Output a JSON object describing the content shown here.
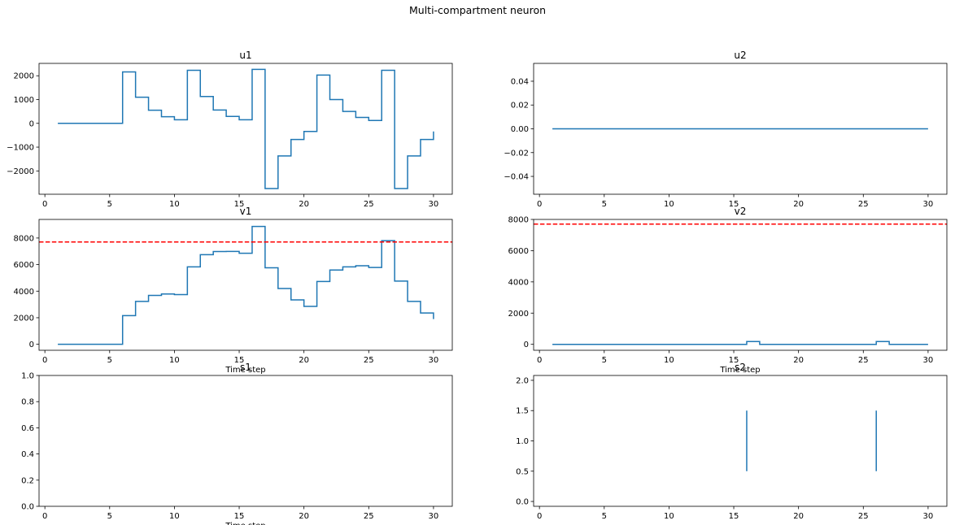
{
  "suptitle": "Multi-compartment neuron",
  "colors": {
    "series": "#1f77b4",
    "threshold": "#ff0000"
  },
  "chart_data": [
    {
      "id": "u1",
      "type": "line",
      "step": true,
      "title": "u1",
      "xlabel": "",
      "xlim": [
        -0.45,
        31.45
      ],
      "ylim": [
        -2980,
        2520
      ],
      "xticks": [
        0,
        5,
        10,
        15,
        20,
        25,
        30
      ],
      "yticks": [
        -2000,
        -1000,
        0,
        1000,
        2000
      ],
      "yticklabels": [
        "−2000",
        "−1000",
        "0",
        "1000",
        "2000"
      ],
      "x": [
        1,
        2,
        3,
        4,
        5,
        6,
        7,
        8,
        9,
        10,
        11,
        12,
        13,
        14,
        15,
        16,
        17,
        18,
        19,
        20,
        21,
        22,
        23,
        24,
        25,
        26,
        27,
        28,
        29,
        30
      ],
      "y": [
        0,
        0,
        0,
        0,
        0,
        2160,
        1100,
        550,
        280,
        150,
        2230,
        1130,
        560,
        290,
        150,
        2270,
        -2740,
        -1370,
        -680,
        -340,
        2030,
        1000,
        500,
        250,
        120,
        2230,
        -2740,
        -1370,
        -680,
        -340
      ]
    },
    {
      "id": "u2",
      "type": "line",
      "step": true,
      "title": "u2",
      "xlabel": "",
      "xlim": [
        -0.45,
        31.45
      ],
      "ylim": [
        -0.055,
        0.055
      ],
      "xticks": [
        0,
        5,
        10,
        15,
        20,
        25,
        30
      ],
      "yticks": [
        -0.04,
        -0.02,
        0.0,
        0.02,
        0.04
      ],
      "yticklabels": [
        "−0.04",
        "−0.02",
        "0.00",
        "0.02",
        "0.04"
      ],
      "x": [
        1,
        30
      ],
      "y": [
        0,
        0
      ]
    },
    {
      "id": "v1",
      "type": "line",
      "step": true,
      "title": "v1",
      "xlabel": "Time step",
      "xlim": [
        -0.45,
        31.45
      ],
      "ylim": [
        -450,
        9400
      ],
      "xticks": [
        0,
        5,
        10,
        15,
        20,
        25,
        30
      ],
      "yticks": [
        0,
        2000,
        4000,
        6000,
        8000
      ],
      "yticklabels": [
        "0",
        "2000",
        "4000",
        "6000",
        "8000"
      ],
      "threshold": 7700,
      "x": [
        1,
        2,
        3,
        4,
        5,
        6,
        7,
        8,
        9,
        10,
        11,
        12,
        13,
        14,
        15,
        16,
        17,
        18,
        19,
        20,
        21,
        22,
        23,
        24,
        25,
        26,
        27,
        28,
        29,
        30
      ],
      "y": [
        0,
        0,
        0,
        0,
        0,
        2160,
        3230,
        3680,
        3790,
        3740,
        5830,
        6750,
        6980,
        6990,
        6850,
        8870,
        5760,
        4200,
        3340,
        2850,
        4730,
        5590,
        5830,
        5910,
        5780,
        7800,
        4760,
        3230,
        2360,
        1900
      ]
    },
    {
      "id": "v2",
      "type": "line",
      "step": true,
      "title": "v2",
      "xlabel": "Time step",
      "xlim": [
        -0.45,
        31.45
      ],
      "ylim": [
        -380,
        8000
      ],
      "xticks": [
        0,
        5,
        10,
        15,
        20,
        25,
        30
      ],
      "yticks": [
        0,
        2000,
        4000,
        6000,
        8000
      ],
      "yticklabels": [
        "0",
        "2000",
        "4000",
        "6000",
        "8000"
      ],
      "threshold": 7700,
      "x": [
        1,
        2,
        3,
        4,
        5,
        6,
        7,
        8,
        9,
        10,
        11,
        12,
        13,
        14,
        15,
        16,
        17,
        18,
        19,
        20,
        21,
        22,
        23,
        24,
        25,
        26,
        27,
        28,
        29,
        30
      ],
      "y": [
        0,
        0,
        0,
        0,
        0,
        0,
        0,
        0,
        0,
        0,
        0,
        0,
        0,
        0,
        0,
        180,
        0,
        0,
        0,
        0,
        0,
        0,
        0,
        0,
        0,
        180,
        0,
        0,
        0,
        0
      ]
    },
    {
      "id": "s1",
      "type": "eventplot",
      "title": "s1",
      "xlabel": "Time step",
      "xlim": [
        -0.45,
        31.45
      ],
      "ylim": [
        0,
        1
      ],
      "xticks": [
        0,
        5,
        10,
        15,
        20,
        25,
        30
      ],
      "yticks": [
        0.0,
        0.2,
        0.4,
        0.6,
        0.8,
        1.0
      ],
      "yticklabels": [
        "0.0",
        "0.2",
        "0.4",
        "0.6",
        "0.8",
        "1.0"
      ],
      "events": [],
      "event_span": [
        0.5,
        1.5
      ]
    },
    {
      "id": "s2",
      "type": "eventplot",
      "title": "s2",
      "xlabel": "",
      "xlim": [
        -0.45,
        31.45
      ],
      "ylim": [
        -0.08,
        2.08
      ],
      "xticks": [
        0,
        5,
        10,
        15,
        20,
        25,
        30
      ],
      "yticks": [
        0.0,
        0.5,
        1.0,
        1.5,
        2.0
      ],
      "yticklabels": [
        "0.0",
        "0.5",
        "1.0",
        "1.5",
        "2.0"
      ],
      "events": [
        16,
        26
      ],
      "event_span": [
        0.5,
        1.5
      ]
    }
  ]
}
